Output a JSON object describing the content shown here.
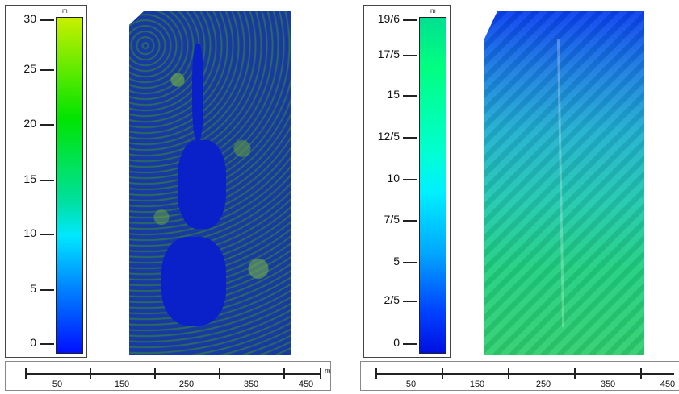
{
  "left_panel": {
    "legend": {
      "unit": "m",
      "ticks": [
        "30",
        "25",
        "20",
        "15",
        "10",
        "5",
        "0"
      ]
    },
    "scalebar": {
      "labels": [
        "50",
        "150",
        "250",
        "350",
        "450"
      ],
      "unit": "m"
    }
  },
  "right_panel": {
    "legend": {
      "unit": "m",
      "ticks": [
        "19/6",
        "17/5",
        "15",
        "12/5",
        "10",
        "7/5",
        "5",
        "2/5",
        "0"
      ]
    },
    "scalebar": {
      "labels": [
        "50",
        "150",
        "250",
        "350",
        "450"
      ]
    }
  },
  "colors": {
    "left_colorbar": [
      "#c8f000",
      "#00e400",
      "#00e8ff",
      "#0010ff"
    ],
    "right_colorbar": [
      "#00e090",
      "#00ffd0",
      "#00a8ff",
      "#0010e0"
    ]
  }
}
